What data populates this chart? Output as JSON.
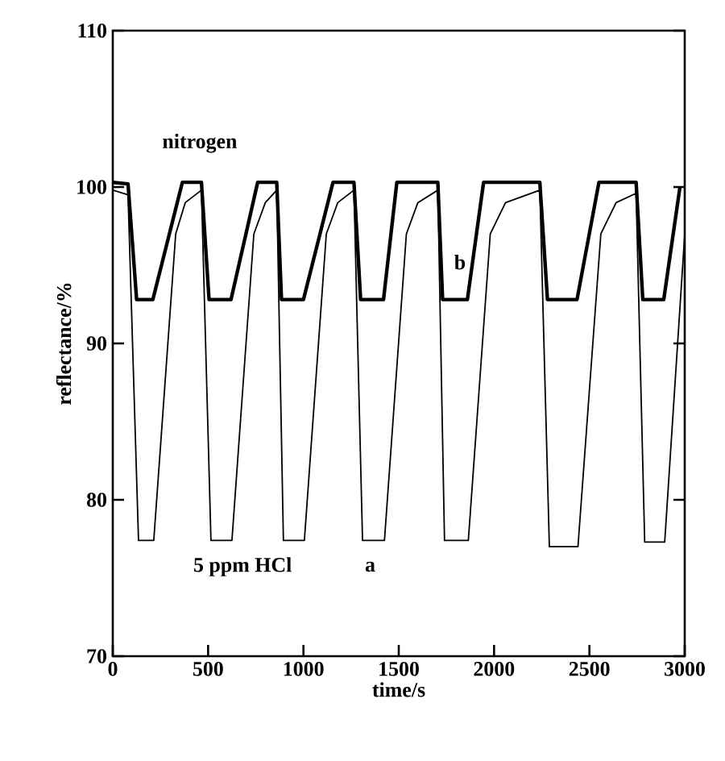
{
  "chart_data": {
    "type": "line",
    "xlabel": "time/s",
    "ylabel": "reflectance/%",
    "xlim": [
      0,
      3000
    ],
    "ylim": [
      70,
      110
    ],
    "xticks": [
      0,
      500,
      1000,
      1500,
      2000,
      2500,
      3000
    ],
    "yticks": [
      70,
      80,
      90,
      100,
      110
    ],
    "grid": false,
    "marker": "none",
    "line_style": "solid",
    "series": [
      {
        "color": "#000000",
        "x": [
          0,
          80,
          135,
          215,
          330,
          380,
          465,
          515,
          625,
          740,
          800,
          860,
          895,
          1005,
          1120,
          1180,
          1265,
          1310,
          1425,
          1540,
          1600,
          1705,
          1740,
          1865,
          1980,
          2060,
          2240,
          2290,
          2440,
          2560,
          2640,
          2745,
          2790,
          2895,
          3000
        ],
        "values": [
          99.8,
          99.5,
          77.4,
          77.4,
          97,
          99,
          99.8,
          77.4,
          77.4,
          97,
          99,
          99.8,
          77.4,
          77.4,
          97,
          99,
          99.8,
          77.4,
          77.4,
          97,
          99,
          99.8,
          77.4,
          77.4,
          97,
          99,
          99.8,
          77.0,
          77.0,
          97,
          99,
          99.6,
          77.3,
          77.3,
          97
        ]
      },
      {
        "color": "#000000",
        "x": [
          0,
          80,
          125,
          210,
          365,
          465,
          505,
          620,
          760,
          860,
          885,
          1000,
          1155,
          1265,
          1300,
          1420,
          1490,
          1705,
          1730,
          1860,
          1945,
          2240,
          2280,
          2435,
          2550,
          2745,
          2780,
          2890,
          2975
        ],
        "values": [
          100.3,
          100.2,
          92.8,
          92.8,
          100.3,
          100.3,
          92.8,
          92.8,
          100.3,
          100.3,
          92.8,
          92.8,
          100.3,
          100.3,
          92.8,
          92.8,
          100.3,
          100.3,
          92.8,
          92.8,
          100.3,
          100.3,
          92.8,
          92.8,
          100.3,
          100.3,
          92.8,
          92.8,
          100.0
        ]
      }
    ],
    "annotations": [
      "nitrogen",
      "5 ppm HCl",
      "a",
      "b"
    ]
  }
}
